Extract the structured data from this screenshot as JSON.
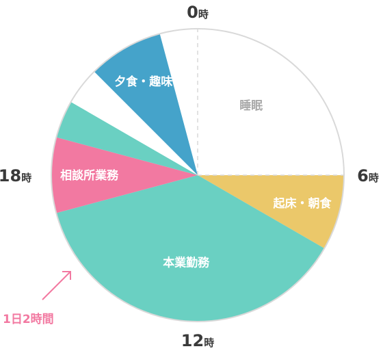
{
  "chart_data": {
    "type": "pie",
    "unit": "時",
    "hour_labels": [
      {
        "num": "0",
        "unit": "時",
        "hour": 0
      },
      {
        "num": "6",
        "unit": "時",
        "hour": 6
      },
      {
        "num": "12",
        "unit": "時",
        "hour": 12
      },
      {
        "num": "18",
        "unit": "時",
        "hour": 18
      }
    ],
    "slices": [
      {
        "label": "睡眠",
        "start": 23.0,
        "end": 6.0,
        "color": "#ffffff",
        "text_color": "#a9a9a9"
      },
      {
        "label": "起床・朝食",
        "start": 6.0,
        "end": 8.0,
        "color": "#ebc86a",
        "text_color": "#ffffff"
      },
      {
        "label": "本業勤務",
        "start": 8.0,
        "end": 17.0,
        "color": "#6ad0c2",
        "text_color": "#ffffff"
      },
      {
        "label": "相談所業務",
        "start": 17.0,
        "end": 19.0,
        "color": "#f279a1",
        "text_color": "#ffffff"
      },
      {
        "label": "",
        "start": 19.0,
        "end": 20.0,
        "color": "#6ad0c2",
        "text_color": "#ffffff"
      },
      {
        "label": "",
        "start": 20.0,
        "end": 21.0,
        "color": "#ffffff",
        "text_color": "#ffffff"
      },
      {
        "label": "夕食・趣味",
        "start": 21.0,
        "end": 23.0,
        "color": "#45a3ca",
        "text_color": "#ffffff"
      }
    ],
    "annotation": {
      "text": "1日2時間",
      "color": "#f279a1"
    },
    "outline_color": "#d9d9d9"
  }
}
